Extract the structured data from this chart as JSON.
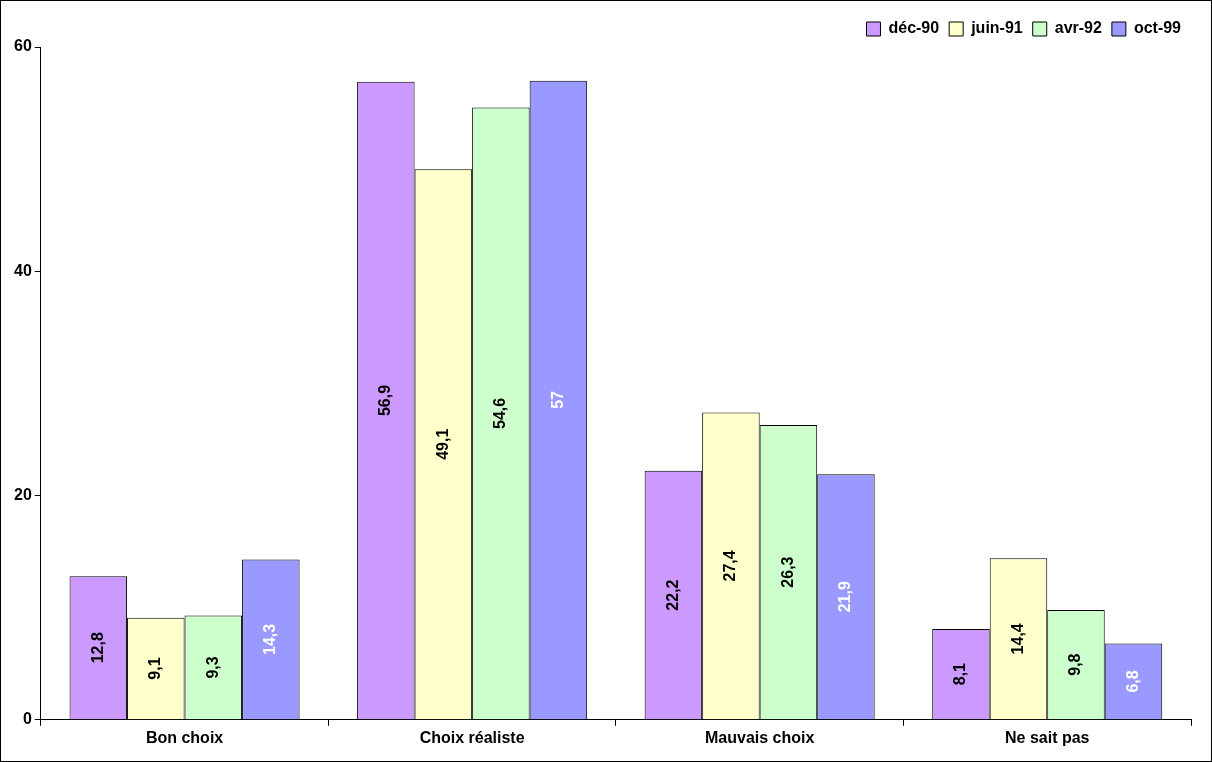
{
  "chart_data": {
    "type": "bar",
    "categories": [
      "Bon choix",
      "Choix réaliste",
      "Mauvais choix",
      "Ne sait pas"
    ],
    "series": [
      {
        "name": "déc-90",
        "color": "#cc99ff",
        "values": [
          12.8,
          56.9,
          22.2,
          8.1
        ],
        "value_labels": [
          "12,8",
          "56,9",
          "22,2",
          "8,1"
        ]
      },
      {
        "name": "juin-91",
        "color": "#ffffcc",
        "values": [
          9.1,
          49.1,
          27.4,
          14.4
        ],
        "value_labels": [
          "9,1",
          "49,1",
          "27,4",
          "14,4"
        ]
      },
      {
        "name": "avr-92",
        "color": "#ccffcc",
        "values": [
          9.3,
          54.6,
          26.3,
          9.8
        ],
        "value_labels": [
          "9,3",
          "54,6",
          "26,3",
          "9,8"
        ]
      },
      {
        "name": "oct-99",
        "color": "#9999ff",
        "values": [
          14.3,
          57,
          21.9,
          6.8
        ],
        "value_labels": [
          "14,3",
          "57",
          "21,9",
          "6,8"
        ]
      }
    ],
    "ylim": [
      0,
      60
    ],
    "yticks": [
      0,
      20,
      40,
      60
    ],
    "grid": false,
    "legend": "top right"
  }
}
